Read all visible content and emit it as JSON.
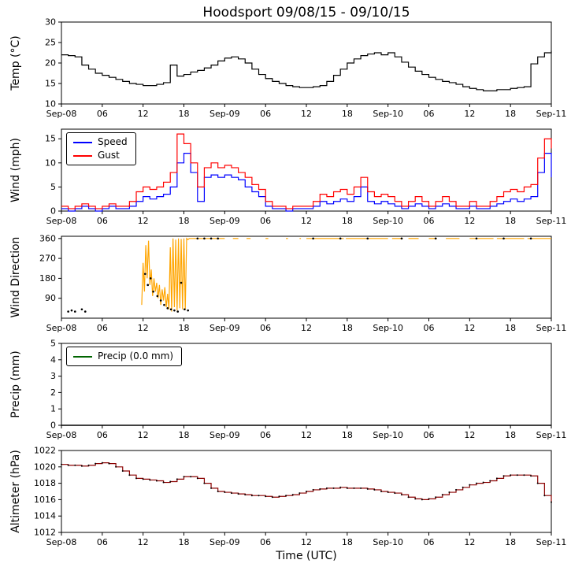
{
  "title": "Hoodsport 09/08/15 - 09/10/15",
  "xlabel": "Time (UTC)",
  "colors": {
    "speed": "#0000ff",
    "gust": "#ff0000",
    "precip": "#006400"
  },
  "legends": {
    "wind": [
      "Speed",
      "Gust"
    ],
    "precip": "Precip (0.0 mm)"
  },
  "xticks": {
    "positions": [
      0,
      6,
      12,
      18,
      24,
      30,
      36,
      42,
      48,
      54,
      60,
      66,
      72
    ],
    "labels": [
      "Sep-08",
      "06",
      "12",
      "18",
      "Sep-09",
      "06",
      "12",
      "18",
      "Sep-10",
      "06",
      "12",
      "18",
      "Sep-11"
    ]
  },
  "chart_data": [
    {
      "type": "line",
      "ylabel": "Temp (°C)",
      "ylim": [
        10,
        30
      ],
      "yticks": [
        10,
        15,
        20,
        25,
        30
      ],
      "series": [
        {
          "name": "Temp",
          "color": "#000000",
          "x0": 0,
          "dx": 1,
          "values": [
            22.0,
            21.8,
            21.5,
            19.5,
            18.5,
            17.5,
            17.0,
            16.5,
            16.0,
            15.5,
            15.0,
            14.8,
            14.5,
            14.5,
            14.8,
            15.2,
            19.5,
            16.8,
            17.2,
            17.8,
            18.2,
            18.8,
            19.5,
            20.5,
            21.2,
            21.5,
            21.0,
            20.0,
            18.5,
            17.2,
            16.2,
            15.5,
            15.0,
            14.5,
            14.2,
            14.0,
            14.0,
            14.2,
            14.5,
            15.5,
            17.0,
            18.5,
            20.0,
            21.0,
            21.8,
            22.2,
            22.5,
            22.0,
            22.5,
            21.5,
            20.2,
            19.0,
            18.0,
            17.2,
            16.5,
            16.0,
            15.5,
            15.2,
            14.8,
            14.2,
            13.8,
            13.5,
            13.2,
            13.2,
            13.5,
            13.5,
            13.8,
            14.0,
            14.2,
            19.8,
            21.5,
            22.5,
            23.0
          ]
        }
      ]
    },
    {
      "type": "line",
      "ylabel": "Wind (mph)",
      "ylim": [
        0,
        17
      ],
      "yticks": [
        0,
        5,
        10,
        15
      ],
      "series": [
        {
          "name": "Speed",
          "color": "#0000ff",
          "x0": 0,
          "dx": 1,
          "values": [
            0.5,
            0.0,
            0.5,
            1.0,
            0.5,
            0.0,
            0.5,
            1.0,
            0.5,
            0.5,
            1.0,
            2.0,
            3.0,
            2.5,
            3.0,
            3.5,
            5.0,
            10.0,
            12.0,
            8.0,
            2.0,
            7.0,
            7.5,
            7.0,
            7.5,
            7.0,
            6.5,
            5.0,
            4.0,
            3.0,
            1.0,
            0.5,
            0.5,
            0.0,
            0.5,
            0.5,
            0.5,
            1.0,
            2.0,
            1.5,
            2.0,
            2.5,
            2.0,
            3.0,
            5.0,
            2.0,
            1.5,
            2.0,
            1.5,
            1.0,
            0.5,
            1.0,
            1.5,
            1.0,
            0.5,
            1.0,
            1.5,
            1.0,
            0.5,
            0.5,
            1.0,
            0.5,
            0.5,
            1.0,
            1.5,
            2.0,
            2.5,
            2.0,
            2.5,
            3.0,
            8.0,
            12.0,
            7.0
          ]
        },
        {
          "name": "Gust",
          "color": "#ff0000",
          "x0": 0,
          "dx": 1,
          "values": [
            1.0,
            0.5,
            1.0,
            1.5,
            1.0,
            0.5,
            1.0,
            1.5,
            1.0,
            1.0,
            2.0,
            4.0,
            5.0,
            4.5,
            5.0,
            6.0,
            8.0,
            16.0,
            14.0,
            10.0,
            5.0,
            9.0,
            10.0,
            9.0,
            9.5,
            9.0,
            8.0,
            7.0,
            5.5,
            4.5,
            2.0,
            1.0,
            1.0,
            0.5,
            1.0,
            1.0,
            1.0,
            2.0,
            3.5,
            3.0,
            4.0,
            4.5,
            3.5,
            5.0,
            7.0,
            4.0,
            3.0,
            3.5,
            3.0,
            2.0,
            1.0,
            2.0,
            3.0,
            2.0,
            1.0,
            2.0,
            3.0,
            2.0,
            1.0,
            1.0,
            2.0,
            1.0,
            1.0,
            2.0,
            3.0,
            4.0,
            4.5,
            4.0,
            5.0,
            5.5,
            11.0,
            15.0,
            13.0
          ]
        }
      ]
    },
    {
      "type": "line",
      "ylabel": "Wind Direction",
      "ylim": [
        0,
        370
      ],
      "yticks": [
        90,
        180,
        270,
        360
      ],
      "series": [
        {
          "name": "Direction",
          "color": "#ffa500",
          "segments": [
            [
              [
                11.8,
                60
              ],
              [
                12.0,
                250
              ],
              [
                12.2,
                120
              ],
              [
                12.4,
                330
              ],
              [
                12.6,
                180
              ],
              [
                12.8,
                350
              ],
              [
                13.0,
                150
              ],
              [
                13.2,
                220
              ],
              [
                13.4,
                100
              ],
              [
                13.6,
                180
              ],
              [
                13.8,
                120
              ],
              [
                14.0,
                160
              ],
              [
                14.2,
                90
              ],
              [
                14.4,
                150
              ],
              [
                14.6,
                60
              ],
              [
                14.8,
                130
              ],
              [
                15.0,
                80
              ],
              [
                15.2,
                140
              ],
              [
                15.4,
                50
              ],
              [
                15.6,
                110
              ],
              [
                15.8,
                40
              ],
              [
                16.0,
                320
              ],
              [
                16.2,
                30
              ],
              [
                16.4,
                360
              ],
              [
                16.6,
                50
              ],
              [
                16.8,
                355
              ],
              [
                17.0,
                35
              ],
              [
                17.2,
                360
              ],
              [
                17.4,
                45
              ],
              [
                17.6,
                358
              ],
              [
                17.8,
                40
              ],
              [
                18.0,
                360
              ],
              [
                18.2,
                38
              ],
              [
                18.4,
                360
              ],
              [
                18.6,
                355
              ],
              [
                18.8,
                360
              ],
              [
                19.0,
                360
              ],
              [
                24.0,
                360
              ]
            ],
            [
              [
                25.2,
                360
              ],
              [
                26.0,
                360
              ]
            ],
            [
              [
                27.2,
                360
              ],
              [
                27.8,
                360
              ]
            ],
            [
              [
                30.0,
                360
              ],
              [
                30.4,
                360
              ]
            ],
            [
              [
                33.0,
                360
              ],
              [
                33.3,
                360
              ]
            ],
            [
              [
                35.0,
                360
              ],
              [
                35.2,
                360
              ]
            ],
            [
              [
                36.0,
                360
              ],
              [
                41.5,
                360
              ]
            ],
            [
              [
                41.8,
                360
              ],
              [
                48.0,
                360
              ]
            ],
            [
              [
                48.6,
                360
              ],
              [
                50.2,
                360
              ]
            ],
            [
              [
                51.0,
                360
              ],
              [
                52.5,
                360
              ]
            ],
            [
              [
                54.0,
                360
              ],
              [
                55.2,
                360
              ]
            ],
            [
              [
                56.5,
                360
              ],
              [
                58.5,
                360
              ]
            ],
            [
              [
                60.0,
                360
              ],
              [
                63.5,
                360
              ]
            ],
            [
              [
                64.0,
                360
              ],
              [
                68.0,
                360
              ]
            ],
            [
              [
                68.5,
                360
              ],
              [
                72.0,
                360
              ]
            ]
          ]
        },
        {
          "name": "Direction observations",
          "color": "#000000",
          "dots": [
            [
              1.0,
              30
            ],
            [
              1.5,
              35
            ],
            [
              2.0,
              30
            ],
            [
              3.0,
              40
            ],
            [
              3.5,
              30
            ],
            [
              12.3,
              200
            ],
            [
              12.7,
              150
            ],
            [
              13.1,
              180
            ],
            [
              13.5,
              120
            ],
            [
              14.1,
              100
            ],
            [
              14.6,
              80
            ],
            [
              15.1,
              60
            ],
            [
              15.6,
              45
            ],
            [
              16.1,
              40
            ],
            [
              16.6,
              35
            ],
            [
              17.1,
              30
            ],
            [
              17.6,
              160
            ],
            [
              18.1,
              40
            ],
            [
              18.6,
              35
            ],
            [
              20.0,
              360
            ],
            [
              21.0,
              360
            ],
            [
              22.0,
              360
            ],
            [
              23.0,
              360
            ],
            [
              37.0,
              360
            ],
            [
              41.0,
              360
            ],
            [
              45.0,
              360
            ],
            [
              50.0,
              360
            ],
            [
              55.0,
              360
            ],
            [
              61.0,
              360
            ],
            [
              65.0,
              360
            ],
            [
              69.0,
              360
            ]
          ]
        }
      ]
    },
    {
      "type": "line",
      "ylabel": "Precip (mm)",
      "ylim": [
        0,
        5
      ],
      "yticks": [
        0,
        1,
        2,
        3,
        4,
        5
      ],
      "series": [
        {
          "name": "Precip",
          "color": "#000000",
          "xy": [
            [
              0,
              0
            ],
            [
              72,
              0
            ]
          ]
        }
      ]
    },
    {
      "type": "line",
      "ylabel": "Altimeter (hPa)",
      "ylim": [
        1012,
        1022
      ],
      "yticks": [
        1012,
        1014,
        1016,
        1018,
        1020,
        1022
      ],
      "series": [
        {
          "name": "Altimeter",
          "color": "#8b0000",
          "x0": 0,
          "dx": 1,
          "markers": true,
          "values": [
            1020.3,
            1020.2,
            1020.2,
            1020.1,
            1020.2,
            1020.4,
            1020.5,
            1020.4,
            1020.0,
            1019.5,
            1019.0,
            1018.6,
            1018.5,
            1018.4,
            1018.3,
            1018.1,
            1018.2,
            1018.5,
            1018.8,
            1018.8,
            1018.6,
            1018.0,
            1017.4,
            1017.0,
            1016.9,
            1016.8,
            1016.7,
            1016.6,
            1016.5,
            1016.5,
            1016.4,
            1016.3,
            1016.4,
            1016.5,
            1016.6,
            1016.8,
            1017.0,
            1017.2,
            1017.3,
            1017.4,
            1017.4,
            1017.5,
            1017.4,
            1017.4,
            1017.4,
            1017.3,
            1017.2,
            1017.0,
            1016.9,
            1016.8,
            1016.6,
            1016.3,
            1016.1,
            1016.0,
            1016.1,
            1016.3,
            1016.6,
            1016.9,
            1017.2,
            1017.5,
            1017.8,
            1018.0,
            1018.1,
            1018.3,
            1018.6,
            1018.9,
            1019.0,
            1019.0,
            1019.0,
            1018.9,
            1018.0,
            1016.5,
            1015.7
          ]
        }
      ]
    }
  ]
}
